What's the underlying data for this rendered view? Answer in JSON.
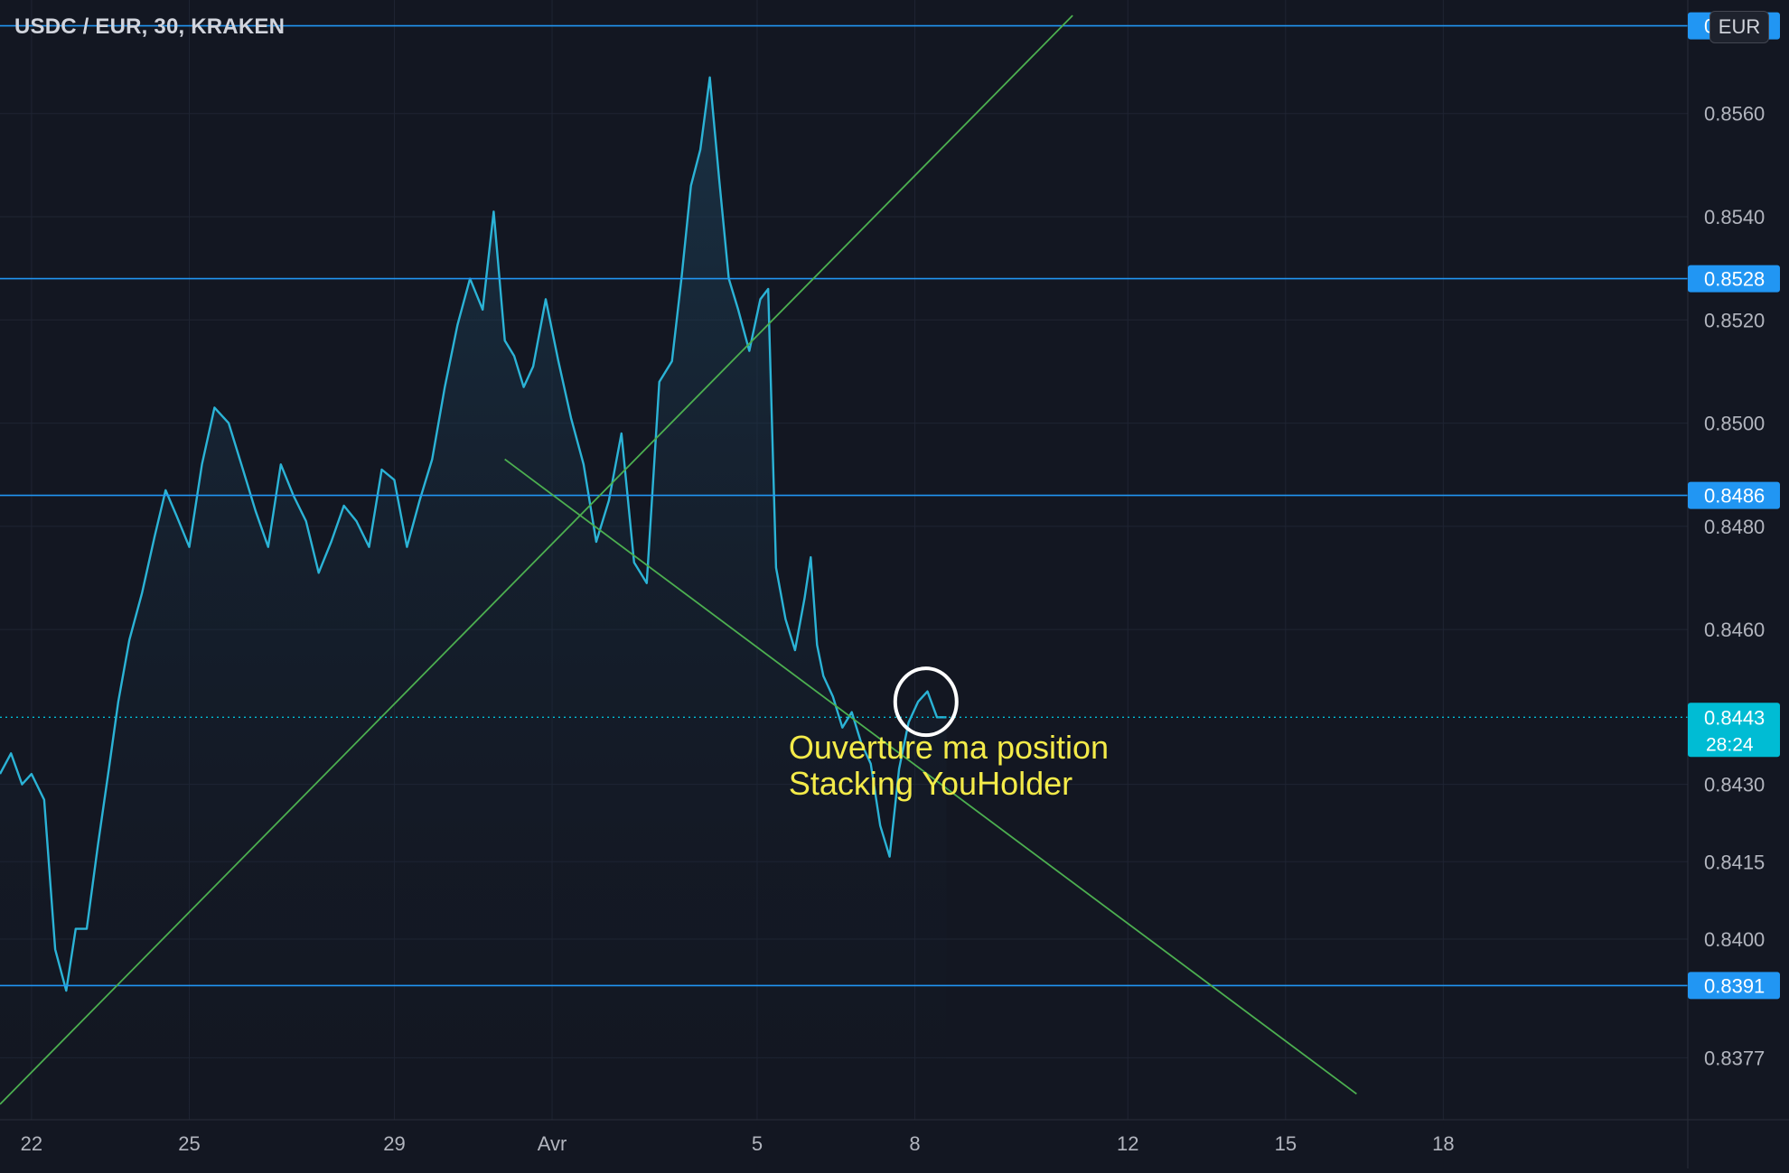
{
  "header": {
    "title": "USDC / EUR, 30, KRAKEN",
    "currency_button": "EUR"
  },
  "colors": {
    "background": "#131722",
    "grid": "#1f2433",
    "price_line": "#2bb3d6",
    "area_fill_top": "#1e4660",
    "horizontal_level": "#2196f3",
    "trendline": "#4caf50",
    "annotation_text": "#f4eb49",
    "current_price_tag": "#00bcd4",
    "axis_text": "#b2b5be"
  },
  "chart_data": {
    "type": "line",
    "title": "USDC / EUR, 30, KRAKEN",
    "xlabel": "",
    "ylabel": "",
    "ylim": [
      0.8365,
      0.8582
    ],
    "xlim": [
      21.8,
      32.5
    ],
    "grid": true,
    "x_ticks": [
      {
        "x": 22,
        "label": "22"
      },
      {
        "x": 23,
        "label": "25"
      },
      {
        "x": 24.3,
        "label": "29"
      },
      {
        "x": 25.3,
        "label": "Avr"
      },
      {
        "x": 26.6,
        "label": "5"
      },
      {
        "x": 27.6,
        "label": "8"
      },
      {
        "x": 28.95,
        "label": "12"
      },
      {
        "x": 29.95,
        "label": "15"
      },
      {
        "x": 30.95,
        "label": "18"
      }
    ],
    "y_ticks": [
      0.856,
      0.854,
      0.852,
      0.85,
      0.848,
      0.846,
      0.843,
      0.8415,
      0.84,
      0.8377
    ],
    "y_tick_labels": [
      "0.8560",
      "0.8540",
      "0.8520",
      "0.8500",
      "0.8480",
      "0.8460",
      "0.8430",
      "0.8415",
      "0.8400",
      "0.8377"
    ],
    "series": [
      {
        "x": [
          21.8,
          21.87,
          21.94,
          22.0,
          22.08,
          22.15,
          22.22,
          22.28,
          22.35,
          22.42,
          22.49,
          22.55,
          22.62,
          22.7,
          22.78,
          22.85,
          22.92,
          23.0,
          23.08,
          23.16,
          23.25,
          23.34,
          23.42,
          23.5,
          23.58,
          23.66,
          23.74,
          23.82,
          23.9,
          23.98,
          24.06,
          24.14,
          24.22,
          24.3,
          24.38,
          24.46,
          24.54,
          24.62,
          24.7,
          24.78,
          24.86,
          24.93,
          25.0,
          25.06,
          25.12,
          25.18,
          25.26,
          25.34,
          25.42,
          25.5,
          25.58,
          25.66,
          25.74,
          25.82,
          25.9,
          25.98,
          26.06,
          26.12,
          26.18,
          26.24,
          26.3,
          26.36,
          26.42,
          26.48,
          26.55,
          26.62,
          26.67,
          26.72,
          26.78,
          26.84,
          26.9,
          26.94,
          26.98,
          27.02,
          27.08,
          27.14,
          27.2,
          27.26,
          27.32,
          27.38,
          27.44,
          27.5,
          27.56,
          27.62,
          27.68,
          27.74,
          27.8
        ],
        "y": [
          0.8432,
          0.8436,
          0.843,
          0.8432,
          0.8427,
          0.8398,
          0.839,
          0.8402,
          0.8402,
          0.8418,
          0.8433,
          0.8446,
          0.8458,
          0.8467,
          0.8478,
          0.8487,
          0.8482,
          0.8476,
          0.8492,
          0.8503,
          0.85,
          0.8491,
          0.8483,
          0.8476,
          0.8492,
          0.8486,
          0.8481,
          0.8471,
          0.8477,
          0.8484,
          0.8481,
          0.8476,
          0.8491,
          0.8489,
          0.8476,
          0.8485,
          0.8493,
          0.8507,
          0.8519,
          0.8528,
          0.8522,
          0.8541,
          0.8516,
          0.8513,
          0.8507,
          0.8511,
          0.8524,
          0.8512,
          0.8501,
          0.8492,
          0.8477,
          0.8485,
          0.8498,
          0.8473,
          0.8469,
          0.8508,
          0.8512,
          0.8528,
          0.8546,
          0.8553,
          0.8567,
          0.8547,
          0.8528,
          0.8522,
          0.8514,
          0.8524,
          0.8526,
          0.8472,
          0.8462,
          0.8456,
          0.8466,
          0.8474,
          0.8457,
          0.8451,
          0.8447,
          0.8441,
          0.8444,
          0.8438,
          0.8434,
          0.8422,
          0.8416,
          0.8433,
          0.8442,
          0.8446,
          0.8448,
          0.8443,
          0.8443
        ]
      }
    ],
    "horizontal_levels": [
      {
        "price": 0.8577,
        "label": "0.8577"
      },
      {
        "price": 0.8528,
        "label": "0.8528"
      },
      {
        "price": 0.8486,
        "label": "0.8486"
      },
      {
        "price": 0.8391,
        "label": "0.8391"
      }
    ],
    "current_price": {
      "price": 0.8443,
      "label": "0.8443",
      "countdown": "28:24"
    },
    "trendlines": [
      {
        "from": [
          21.8,
          0.8368
        ],
        "to": [
          28.6,
          0.8579
        ]
      },
      {
        "from": [
          25.0,
          0.8493
        ],
        "to": [
          30.4,
          0.837
        ]
      }
    ],
    "annotations": [
      {
        "x": 26.8,
        "y": 0.8435,
        "lines": [
          "Ouverture ma position",
          "Stacking YouHolder"
        ]
      }
    ],
    "highlight_circle": {
      "x": 27.67,
      "y": 0.8446
    }
  }
}
